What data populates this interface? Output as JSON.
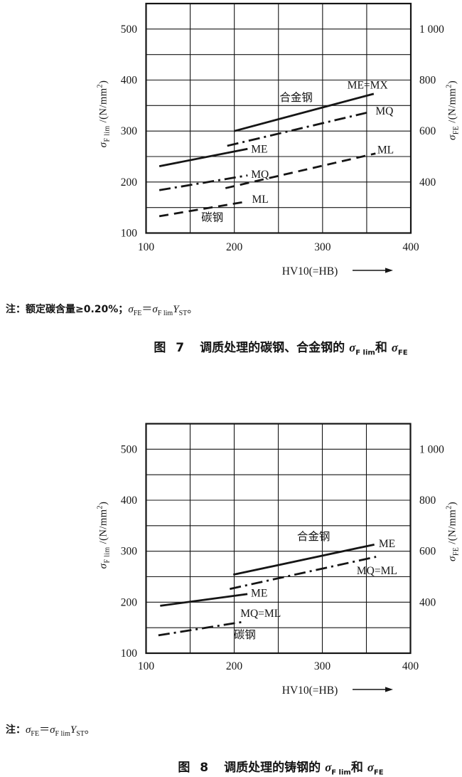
{
  "ink": "#151515",
  "axis_titles": {
    "left": {
      "sigma": "σ",
      "sub": "F lim",
      "unit_open": " /(N/mm",
      "sup": "2",
      "unit_close": ")"
    },
    "right": {
      "sigma": "σ",
      "sub": "FE",
      "unit_open": " /(N/mm",
      "sup": "2",
      "unit_close": ")"
    }
  },
  "figure7": {
    "note": {
      "lead": "注：额定碳含量≥0.20%；",
      "sig1": "σ",
      "sig1_sub": "FE",
      "eq": "＝",
      "sig2": "σ",
      "sig2_sub": "F lim",
      "ys": "Y",
      "ys_sub": "ST",
      "end": "。"
    },
    "caption": {
      "num": "图 7",
      "body": "调质处理的碳钢、合金钢的 ",
      "sig1": "σ",
      "sig1_sub": "F lim",
      "and": "和 ",
      "sig2": "σ",
      "sig2_sub": "FE"
    }
  },
  "figure8": {
    "note": {
      "lead": "注：",
      "sig1": "σ",
      "sig1_sub": "FE",
      "eq": "＝",
      "sig2": "σ",
      "sig2_sub": "F lim",
      "ys": "Y",
      "ys_sub": "ST",
      "end": "。"
    },
    "caption": {
      "num": "图 8",
      "body": "调质处理的铸钢的 ",
      "sig1": "σ",
      "sig1_sub": "F lim",
      "and": "和 ",
      "sig2": "σ",
      "sig2_sub": "FE"
    }
  },
  "chart_data": [
    {
      "type": "line",
      "title": "图 7 调质处理的碳钢、合金钢的 σF lim 和 σFE",
      "xlabel": "HV10(=HB)",
      "ylabel_left": "σF lim /(N/mm²)",
      "ylabel_right": "σFE /(N/mm²)",
      "xlim": [
        100,
        400
      ],
      "ylim_left": [
        100,
        550
      ],
      "ylim_right": [
        200,
        1100
      ],
      "grid_step": 50,
      "grid": true,
      "x_ticks": [
        "100",
        "200",
        "300",
        "400"
      ],
      "x_tick_values": [
        100,
        200,
        300,
        400
      ],
      "y_ticks_left": [
        "100",
        "200",
        "300",
        "400",
        "500"
      ],
      "y_tick_left_values": [
        100,
        200,
        300,
        400,
        500
      ],
      "y_ticks_right": [
        "400",
        "600",
        "800",
        "1 000"
      ],
      "y_tick_right_at_left_value": [
        200,
        300,
        400,
        500
      ],
      "groups": [
        {
          "key": "carbon",
          "name": "碳钢",
          "label": {
            "x": 175,
            "y": 131,
            "anchor": "middle"
          },
          "series": [
            {
              "key": "me",
              "name": "ME",
              "style": "solid",
              "points": [
                [
                  115,
                  231
                ],
                [
                  215,
                  265
                ]
              ],
              "label": {
                "x": 219,
                "y": 265,
                "anchor": "start"
              }
            },
            {
              "key": "mq",
              "name": "MQ",
              "style": "dashdot",
              "points": [
                [
                  115,
                  184
                ],
                [
                  215,
                  213
                ]
              ],
              "label": {
                "x": 219,
                "y": 215,
                "anchor": "start"
              }
            },
            {
              "key": "ml",
              "name": "ML",
              "style": "dashed",
              "points": [
                [
                  115,
                  133
                ],
                [
                  215,
                  162
                ]
              ],
              "label": {
                "x": 220,
                "y": 166,
                "anchor": "start"
              }
            }
          ]
        },
        {
          "key": "alloy",
          "name": "合金钢",
          "label": {
            "x": 270,
            "y": 366,
            "anchor": "middle"
          },
          "series": [
            {
              "key": "me_mx",
              "name": "ME=MX",
              "style": "solid",
              "points": [
                [
                  200,
                  300
                ],
                [
                  358,
                  373
                ]
              ],
              "label": {
                "x": 351,
                "y": 390,
                "anchor": "middle"
              }
            },
            {
              "key": "mq",
              "name": "MQ",
              "style": "dashdot",
              "points": [
                [
                  192,
                  271
                ],
                [
                  355,
                  338
                ]
              ],
              "label": {
                "x": 360,
                "y": 339,
                "anchor": "start"
              }
            },
            {
              "key": "ml",
              "name": "ML",
              "style": "dashed",
              "points": [
                [
                  190,
                  188
                ],
                [
                  360,
                  256
                ]
              ],
              "label": {
                "x": 362,
                "y": 263,
                "anchor": "start"
              }
            }
          ]
        }
      ]
    },
    {
      "type": "line",
      "title": "图 8 调质处理的铸钢的 σF lim 和 σFE",
      "xlabel": "HV10(=HB)",
      "ylabel_left": "σF lim /(N/mm²)",
      "ylabel_right": "σFE /(N/mm²)",
      "xlim": [
        100,
        400
      ],
      "ylim_left": [
        100,
        550
      ],
      "ylim_right": [
        200,
        1100
      ],
      "grid_step": 50,
      "grid": true,
      "x_ticks": [
        "100",
        "200",
        "300",
        "400"
      ],
      "x_tick_values": [
        100,
        200,
        300,
        400
      ],
      "y_ticks_left": [
        "100",
        "200",
        "300",
        "400",
        "500"
      ],
      "y_tick_left_values": [
        100,
        200,
        300,
        400,
        500
      ],
      "y_ticks_right": [
        "400",
        "600",
        "800",
        "1 000"
      ],
      "y_tick_right_at_left_value": [
        200,
        300,
        400,
        500
      ],
      "groups": [
        {
          "key": "carbon",
          "name": "碳钢",
          "label": {
            "x": 212,
            "y": 136,
            "anchor": "middle"
          },
          "series": [
            {
              "key": "me",
              "name": "ME",
              "style": "solid",
              "points": [
                [
                  116,
                  193
                ],
                [
                  215,
                  216
                ]
              ],
              "label": {
                "x": 219,
                "y": 218,
                "anchor": "start"
              }
            },
            {
              "key": "mq_ml",
              "name": "MQ=ML",
              "style": "dashdot",
              "points": [
                [
                  114,
                  135
                ],
                [
                  212,
                  162
                ]
              ],
              "label": {
                "x": 230,
                "y": 178,
                "anchor": "middle"
              }
            }
          ]
        },
        {
          "key": "alloy",
          "name": "合金钢",
          "label": {
            "x": 290,
            "y": 329,
            "anchor": "middle"
          },
          "series": [
            {
              "key": "me",
              "name": "ME",
              "style": "solid",
              "points": [
                [
                  199,
                  254
                ],
                [
                  359,
                  313
                ]
              ],
              "label": {
                "x": 364,
                "y": 315,
                "anchor": "start"
              }
            },
            {
              "key": "mq_ml",
              "name": "MQ=ML",
              "style": "dashdot",
              "points": [
                [
                  195,
                  226
                ],
                [
                  361,
                  289
                ]
              ],
              "label": {
                "x": 339,
                "y": 262,
                "anchor": "start"
              }
            }
          ]
        }
      ]
    }
  ]
}
